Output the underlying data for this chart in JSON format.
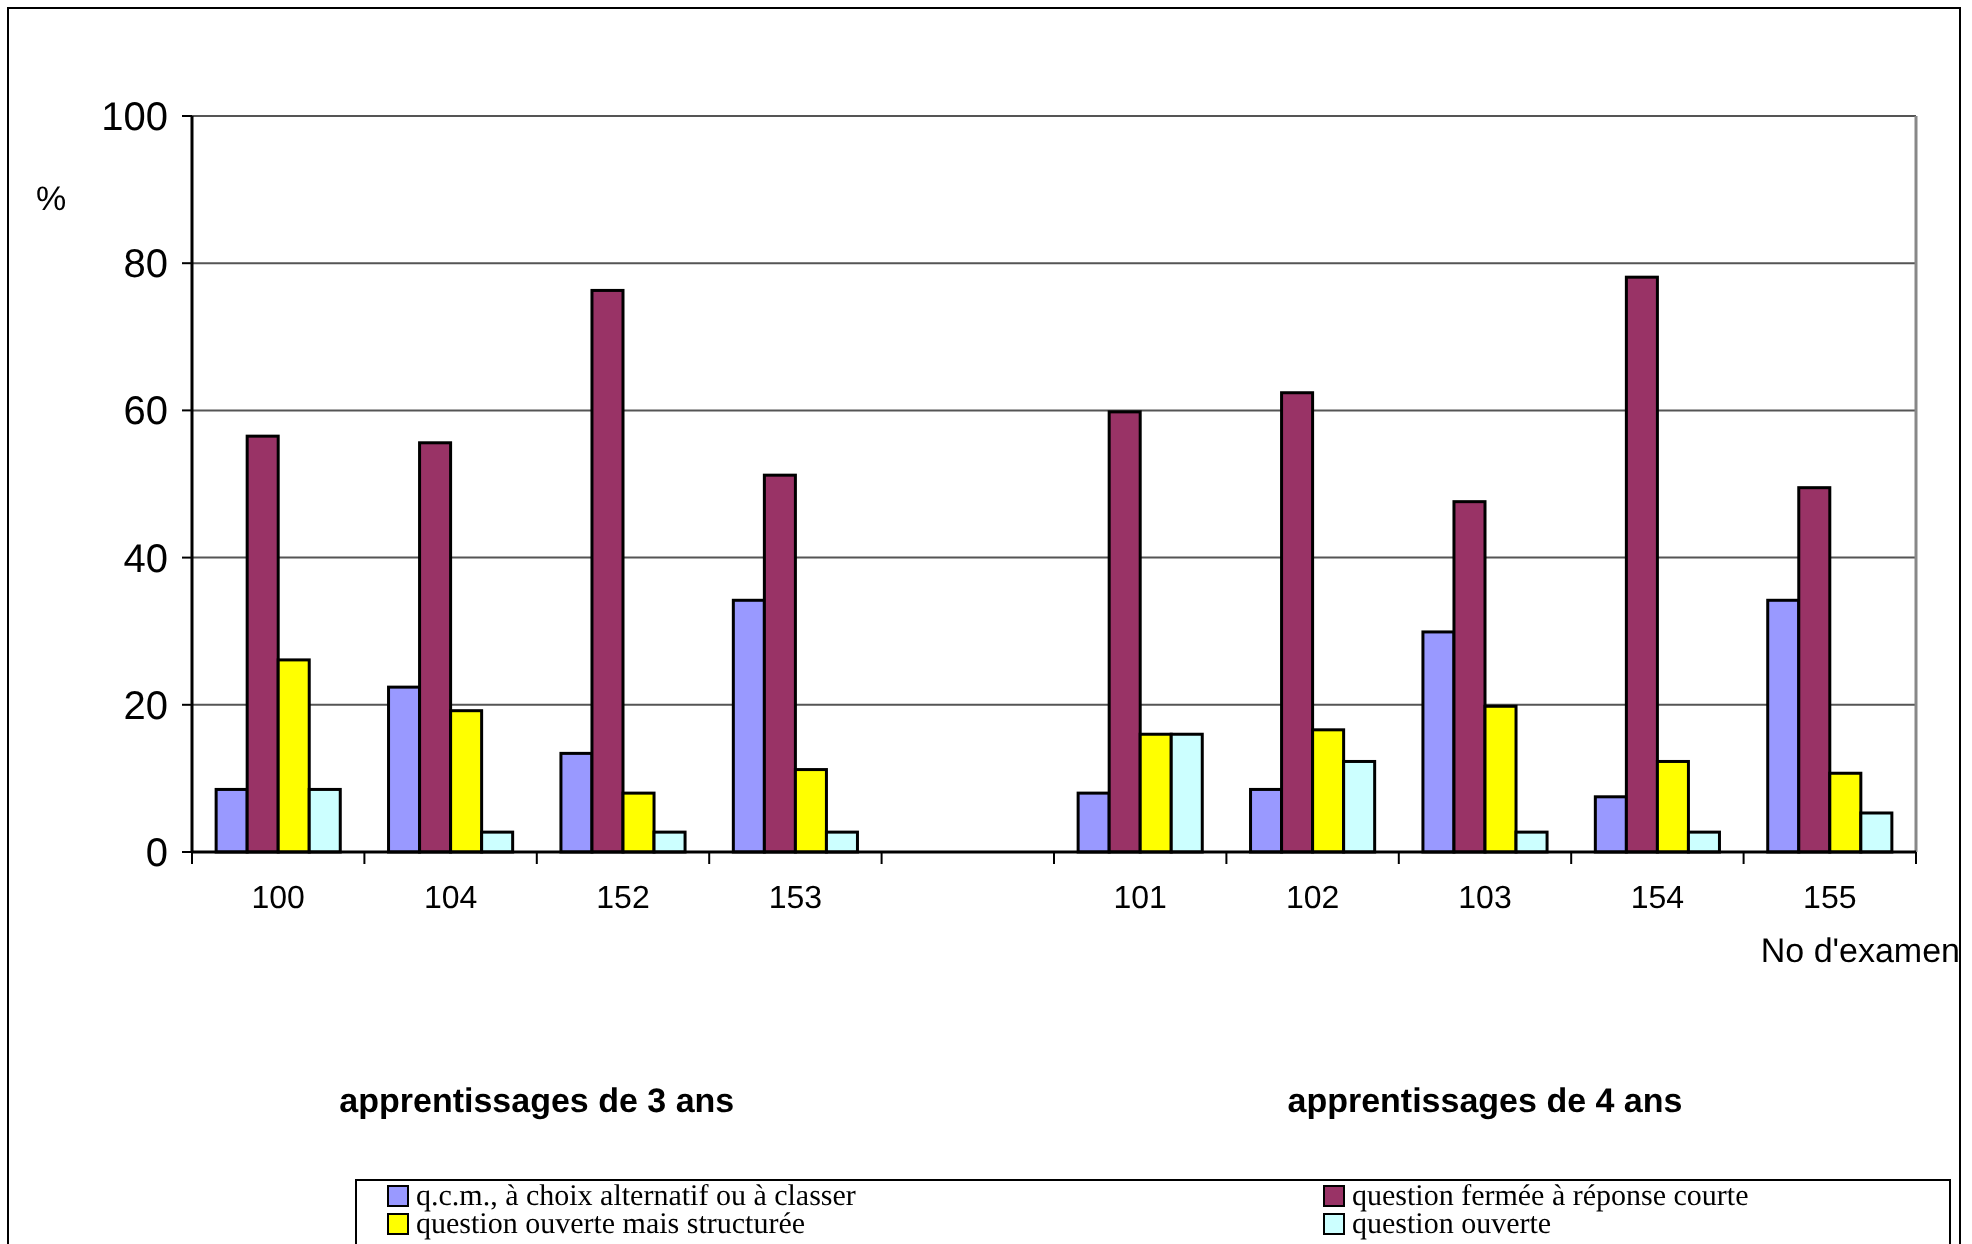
{
  "chart_data": {
    "type": "bar",
    "ylabel": "%",
    "xlabel": "No d'examen",
    "categories": [
      "100",
      "104",
      "152",
      "153",
      null,
      "101",
      "102",
      "103",
      "154",
      "155"
    ],
    "series": [
      {
        "name": "q.c.m., à choix alternatif ou à classer",
        "color": "#9999ff",
        "values": [
          8.5,
          22.4,
          13.4,
          34.2,
          null,
          8.0,
          8.5,
          29.9,
          7.5,
          34.2
        ]
      },
      {
        "name": "question fermée à réponse courte",
        "color": "#993366",
        "values": [
          56.5,
          55.6,
          76.3,
          51.2,
          null,
          59.8,
          62.4,
          47.6,
          78.1,
          49.5
        ]
      },
      {
        "name": "question ouverte mais structurée",
        "color": "#ffff00",
        "values": [
          26.1,
          19.2,
          8.0,
          11.2,
          null,
          16.0,
          16.6,
          19.8,
          12.3,
          10.7
        ]
      },
      {
        "name": "question ouverte",
        "color": "#ccffff",
        "values": [
          8.5,
          2.7,
          2.7,
          2.7,
          null,
          16.0,
          12.3,
          2.7,
          2.7,
          5.3
        ]
      }
    ],
    "ylim": [
      0,
      100
    ],
    "yticks": [
      0,
      20,
      40,
      60,
      80,
      100
    ],
    "grid": "y",
    "legend": "bottom",
    "annotations": [
      "apprentissages de 3 ans",
      "apprentissages de 4 ans"
    ]
  }
}
